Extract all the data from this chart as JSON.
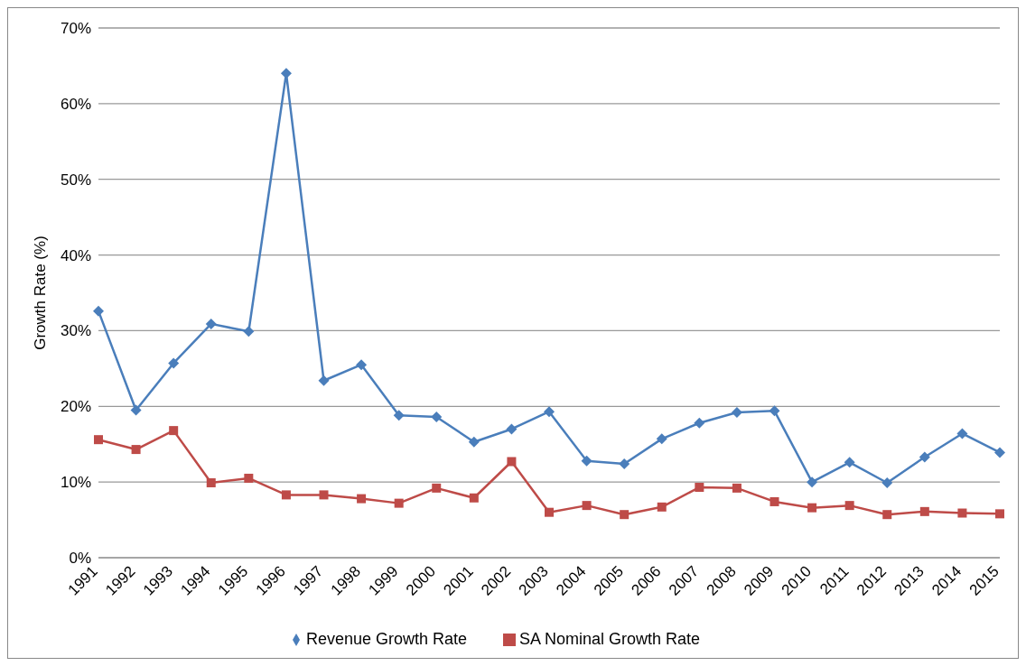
{
  "chart_data": {
    "type": "line",
    "ylabel": "Growth Rate (%)",
    "categories": [
      "1991",
      "1992",
      "1993",
      "1994",
      "1995",
      "1996",
      "1997",
      "1998",
      "1999",
      "2000",
      "2001",
      "2002",
      "2003",
      "2004",
      "2005",
      "2006",
      "2007",
      "2008",
      "2009",
      "2010",
      "2011",
      "2012",
      "2013",
      "2014",
      "2015"
    ],
    "series": [
      {
        "name": "Revenue Growth Rate",
        "color": "#4a7ebb",
        "marker": "diamond",
        "values": [
          32.6,
          19.5,
          25.7,
          30.9,
          29.9,
          64.0,
          23.4,
          25.5,
          18.8,
          18.6,
          15.3,
          17.0,
          19.3,
          12.8,
          12.4,
          15.7,
          17.8,
          19.2,
          19.4,
          10.0,
          12.6,
          9.9,
          13.3,
          16.4,
          13.9
        ]
      },
      {
        "name": "SA Nominal Growth Rate",
        "color": "#be4b48",
        "marker": "square",
        "values": [
          15.6,
          14.3,
          16.8,
          9.9,
          10.5,
          8.3,
          8.3,
          7.8,
          7.2,
          9.2,
          7.9,
          12.7,
          6.0,
          6.9,
          5.7,
          6.7,
          9.3,
          9.2,
          7.4,
          6.6,
          6.9,
          5.7,
          6.1,
          5.9,
          5.8
        ]
      }
    ],
    "ylim": [
      0,
      70
    ],
    "yticks": [
      {
        "value": 0,
        "label": "0%"
      },
      {
        "value": 10,
        "label": "10%"
      },
      {
        "value": 20,
        "label": "20%"
      },
      {
        "value": 30,
        "label": "30%"
      },
      {
        "value": 40,
        "label": "40%"
      },
      {
        "value": 50,
        "label": "50%"
      },
      {
        "value": 60,
        "label": "60%"
      },
      {
        "value": 70,
        "label": "70%"
      }
    ],
    "grid": "y",
    "legend": "bottom"
  }
}
